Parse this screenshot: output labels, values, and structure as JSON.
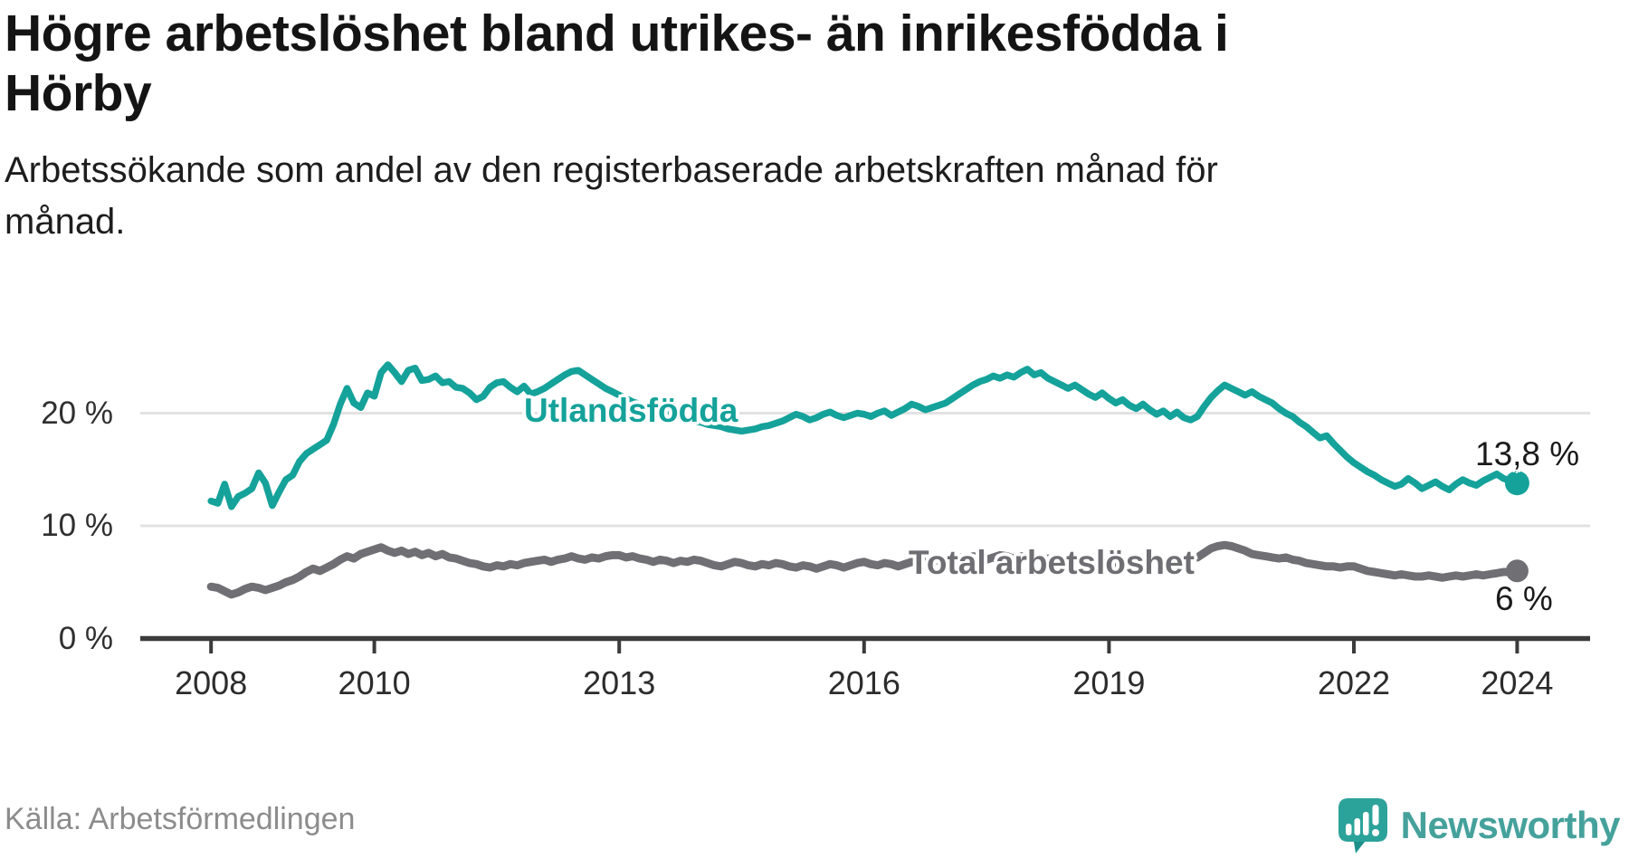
{
  "header": {
    "title_lines": [
      "Högre arbetslöshet bland utrikes- än inrikesfödda i",
      "Hörby"
    ],
    "subtitle_lines": [
      "Arbetssökande som andel av den registerbaserade arbetskraften månad för",
      "månad."
    ]
  },
  "footer": {
    "source": "Källa: Arbetsförmedlingen",
    "brand": "Newsworthy"
  },
  "colors": {
    "foreign_series": "#14a29a",
    "total_series": "#6f6f74",
    "grid": "#e2e2e2",
    "axis": "#3b3b3b",
    "end_label_text": "#1a1a1a",
    "brand_teal": "#45a19b",
    "brand_bubble": "#2ba29a",
    "background": "#ffffff"
  },
  "chart_data": {
    "type": "line",
    "title": "Högre arbetslöshet bland utrikes- än inrikesfödda i Hörby",
    "subtitle": "Arbetssökande som andel av den registerbaserade arbetskraften månad för månad.",
    "xlabel": "",
    "ylabel": "",
    "x_start": "2008-01",
    "x_end": "2024-01",
    "x_step": "month",
    "ylim": [
      0,
      26
    ],
    "grid": true,
    "legend_position": "inline-labels",
    "grid_color": "#e2e2e2",
    "axis_color": "#3b3b3b",
    "y_ticks": [
      {
        "value": 0,
        "label": "0 %"
      },
      {
        "value": 10,
        "label": "10 %"
      },
      {
        "value": 20,
        "label": "20 %"
      }
    ],
    "x_ticks": [
      {
        "year": 2008,
        "label": "2008"
      },
      {
        "year": 2010,
        "label": "2010"
      },
      {
        "year": 2013,
        "label": "2013"
      },
      {
        "year": 2016,
        "label": "2016"
      },
      {
        "year": 2019,
        "label": "2019"
      },
      {
        "year": 2022,
        "label": "2022"
      },
      {
        "year": 2024,
        "label": "2024"
      }
    ],
    "series": [
      {
        "id": "utlandsfodda",
        "name": "Utlandsfödda",
        "color": "#14a29a",
        "end_label": "13,8 %",
        "end_value": 13.8,
        "values": [
          12.2,
          12.0,
          13.7,
          11.7,
          12.6,
          12.9,
          13.3,
          14.7,
          13.8,
          11.8,
          13.0,
          14.1,
          14.5,
          15.7,
          16.4,
          16.8,
          17.2,
          17.6,
          19.0,
          20.8,
          22.2,
          20.9,
          20.5,
          21.8,
          21.5,
          23.6,
          24.3,
          23.6,
          22.8,
          23.8,
          24.0,
          22.9,
          23.0,
          23.3,
          22.7,
          22.8,
          22.3,
          22.2,
          21.8,
          21.2,
          21.5,
          22.3,
          22.7,
          22.8,
          22.3,
          21.9,
          22.4,
          21.7,
          21.9,
          22.2,
          22.6,
          23.0,
          23.4,
          23.7,
          23.8,
          23.4,
          23.0,
          22.6,
          22.2,
          21.9,
          21.6,
          21.3,
          21.0,
          20.8,
          20.5,
          20.3,
          20.1,
          19.9,
          19.7,
          19.6,
          19.4,
          19.3,
          19.2,
          19.0,
          18.9,
          18.8,
          18.6,
          18.5,
          18.4,
          18.5,
          18.6,
          18.8,
          18.9,
          19.1,
          19.3,
          19.6,
          19.9,
          19.7,
          19.4,
          19.6,
          19.9,
          20.1,
          19.8,
          19.6,
          19.8,
          20.0,
          19.9,
          19.7,
          20.0,
          20.2,
          19.8,
          20.1,
          20.4,
          20.8,
          20.6,
          20.3,
          20.5,
          20.7,
          20.9,
          21.3,
          21.7,
          22.1,
          22.5,
          22.8,
          23.0,
          23.3,
          23.1,
          23.4,
          23.2,
          23.6,
          23.9,
          23.4,
          23.6,
          23.1,
          22.8,
          22.5,
          22.2,
          22.5,
          22.1,
          21.7,
          21.4,
          21.8,
          21.3,
          20.9,
          21.2,
          20.7,
          20.4,
          20.8,
          20.3,
          19.9,
          20.2,
          19.7,
          20.1,
          19.6,
          19.4,
          19.7,
          20.6,
          21.4,
          22.0,
          22.5,
          22.2,
          21.9,
          21.6,
          21.9,
          21.5,
          21.2,
          20.9,
          20.4,
          20.0,
          19.7,
          19.2,
          18.8,
          18.3,
          17.8,
          18.0,
          17.3,
          16.7,
          16.1,
          15.6,
          15.2,
          14.8,
          14.5,
          14.1,
          13.8,
          13.5,
          13.7,
          14.2,
          13.8,
          13.3,
          13.6,
          13.9,
          13.5,
          13.2,
          13.7,
          14.1,
          13.8,
          13.6,
          14.0,
          14.3,
          14.6,
          14.2,
          14.0,
          13.8
        ]
      },
      {
        "id": "total",
        "name": "Total arbetslöshet",
        "color": "#6f6f74",
        "end_label": "6 %",
        "end_value": 6.0,
        "values": [
          4.6,
          4.5,
          4.2,
          3.9,
          4.1,
          4.4,
          4.6,
          4.5,
          4.3,
          4.5,
          4.7,
          5.0,
          5.2,
          5.5,
          5.9,
          6.2,
          6.0,
          6.3,
          6.6,
          7.0,
          7.3,
          7.1,
          7.5,
          7.7,
          7.9,
          8.1,
          7.8,
          7.6,
          7.8,
          7.5,
          7.7,
          7.4,
          7.6,
          7.3,
          7.5,
          7.2,
          7.1,
          6.9,
          6.7,
          6.6,
          6.4,
          6.3,
          6.5,
          6.4,
          6.6,
          6.5,
          6.7,
          6.8,
          6.9,
          7.0,
          6.8,
          7.0,
          7.1,
          7.3,
          7.1,
          7.0,
          7.2,
          7.1,
          7.3,
          7.4,
          7.4,
          7.2,
          7.3,
          7.1,
          7.0,
          6.8,
          7.0,
          6.9,
          6.7,
          6.9,
          6.8,
          7.0,
          6.9,
          6.7,
          6.5,
          6.4,
          6.6,
          6.8,
          6.7,
          6.5,
          6.4,
          6.6,
          6.5,
          6.7,
          6.6,
          6.4,
          6.3,
          6.5,
          6.4,
          6.2,
          6.4,
          6.6,
          6.5,
          6.3,
          6.5,
          6.7,
          6.8,
          6.6,
          6.5,
          6.7,
          6.6,
          6.4,
          6.6,
          6.8,
          6.7,
          6.9,
          6.8,
          7.0,
          7.1,
          7.0,
          7.2,
          7.1,
          7.3,
          7.2,
          7.0,
          7.2,
          7.4,
          7.3,
          7.1,
          7.3,
          7.2,
          7.0,
          6.9,
          7.1,
          7.0,
          6.8,
          7.0,
          6.9,
          6.7,
          6.9,
          6.8,
          7.0,
          6.9,
          6.7,
          6.8,
          6.6,
          6.8,
          6.7,
          6.9,
          7.0,
          6.8,
          7.0,
          7.1,
          7.0,
          7.1,
          7.2,
          7.6,
          8.0,
          8.2,
          8.3,
          8.2,
          8.0,
          7.8,
          7.5,
          7.4,
          7.3,
          7.2,
          7.1,
          7.2,
          7.0,
          6.9,
          6.7,
          6.6,
          6.5,
          6.4,
          6.4,
          6.3,
          6.4,
          6.4,
          6.2,
          6.0,
          5.9,
          5.8,
          5.7,
          5.6,
          5.7,
          5.6,
          5.5,
          5.5,
          5.6,
          5.5,
          5.4,
          5.5,
          5.6,
          5.5,
          5.6,
          5.7,
          5.6,
          5.7,
          5.8,
          5.9,
          5.9,
          6.0
        ]
      }
    ]
  }
}
